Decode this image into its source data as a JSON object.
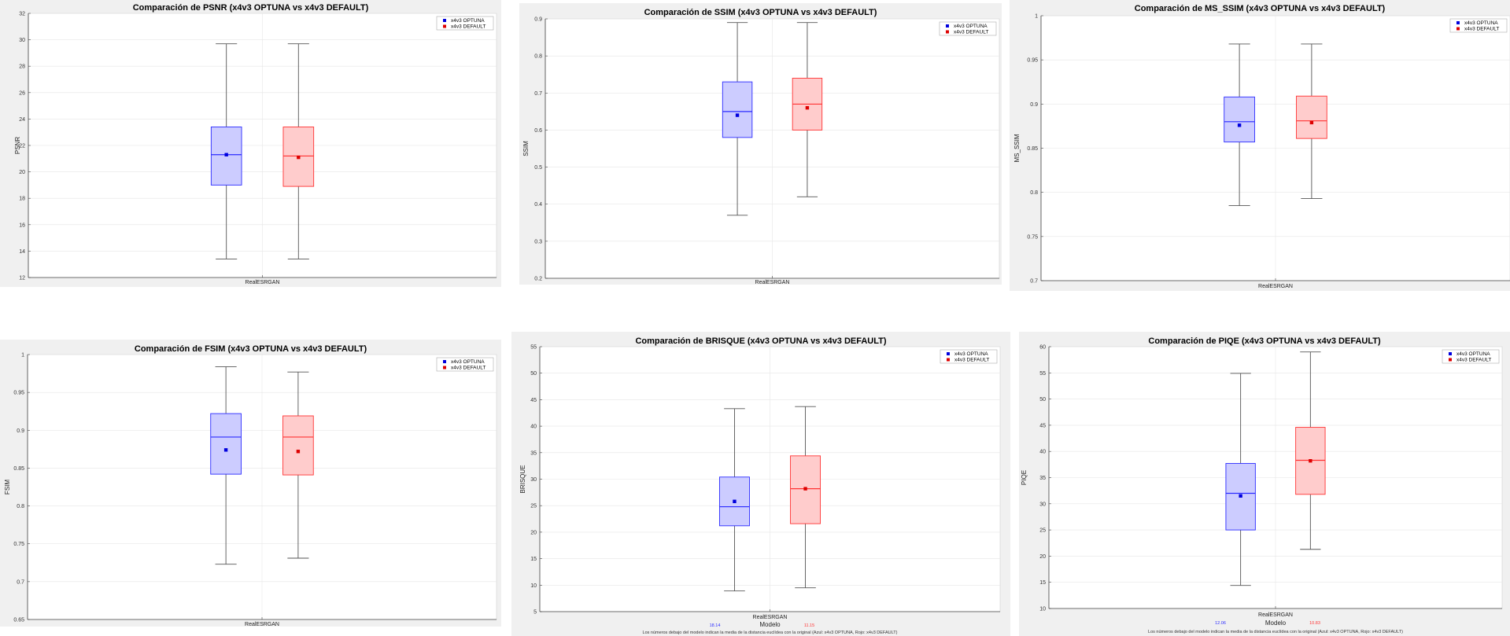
{
  "colors": {
    "optuna_edge": "#2b2bff",
    "optuna_fill": "#ccccff",
    "default_edge": "#ff3333",
    "default_fill": "#ffcccc",
    "optuna_mean": "#0000dd",
    "default_mean": "#dd0000",
    "whisker": "#555555"
  },
  "chart_data": [
    {
      "type": "box",
      "title": "Comparación de PSNR (x4v3 OPTUNA vs x4v3 DEFAULT)",
      "ylabel": "PSNR",
      "xlabel": "",
      "category": "RealESRGAN",
      "ylim": [
        12,
        32
      ],
      "yticks": [
        "12",
        "14",
        "16",
        "18",
        "20",
        "22",
        "24",
        "26",
        "28",
        "30",
        "32"
      ],
      "legend": [
        "x4v3 OPTUNA",
        "x4v3 DEFAULT"
      ],
      "legend_position": "top-right",
      "grid": true,
      "series": [
        {
          "name": "x4v3 OPTUNA",
          "min": 13.4,
          "q1": 19.0,
          "median": 21.3,
          "q3": 23.4,
          "max": 29.7,
          "mean": 21.3
        },
        {
          "name": "x4v3 DEFAULT",
          "min": 13.4,
          "q1": 18.9,
          "median": 21.2,
          "q3": 23.4,
          "max": 29.7,
          "mean": 21.1
        }
      ]
    },
    {
      "type": "box",
      "title": "Comparación de SSIM (x4v3 OPTUNA vs x4v3 DEFAULT)",
      "ylabel": "SSIM",
      "xlabel": "",
      "category": "RealESRGAN",
      "ylim": [
        0.2,
        0.9
      ],
      "yticks": [
        "0.2",
        "0.3",
        "0.4",
        "0.5",
        "0.6",
        "0.7",
        "0.8",
        "0.9"
      ],
      "legend": [
        "x4v3 OPTUNA",
        "x4v3 DEFAULT"
      ],
      "legend_position": "top-right",
      "grid": true,
      "series": [
        {
          "name": "x4v3 OPTUNA",
          "min": 0.37,
          "q1": 0.58,
          "median": 0.65,
          "q3": 0.73,
          "max": 0.89,
          "mean": 0.64
        },
        {
          "name": "x4v3 DEFAULT",
          "min": 0.42,
          "q1": 0.6,
          "median": 0.67,
          "q3": 0.74,
          "max": 0.89,
          "mean": 0.66
        }
      ]
    },
    {
      "type": "box",
      "title": "Comparación de MS_SSIM (x4v3 OPTUNA vs x4v3 DEFAULT)",
      "ylabel": "MS_SSIM",
      "xlabel": "",
      "category": "RealESRGAN",
      "ylim": [
        0.7,
        1
      ],
      "yticks": [
        "0.7",
        "0.75",
        "0.8",
        "0.85",
        "0.9",
        "0.95",
        "1"
      ],
      "legend": [
        "x4v3 OPTUNA",
        "x4v3 DEFAULT"
      ],
      "legend_position": "top-right",
      "grid": true,
      "series": [
        {
          "name": "x4v3 OPTUNA",
          "min": 0.785,
          "q1": 0.857,
          "median": 0.88,
          "q3": 0.908,
          "max": 0.968,
          "mean": 0.876
        },
        {
          "name": "x4v3 DEFAULT",
          "min": 0.793,
          "q1": 0.861,
          "median": 0.881,
          "q3": 0.909,
          "max": 0.968,
          "mean": 0.879
        }
      ]
    },
    {
      "type": "box",
      "title": "Comparación de FSIM (x4v3 OPTUNA vs x4v3 DEFAULT)",
      "ylabel": "FSIM",
      "xlabel": "",
      "category": "RealESRGAN",
      "ylim": [
        0.65,
        1
      ],
      "yticks": [
        "0.65",
        "0.7",
        "0.75",
        "0.8",
        "0.85",
        "0.9",
        "0.95",
        "1"
      ],
      "legend": [
        "x4v3 OPTUNA",
        "x4v3 DEFAULT"
      ],
      "legend_position": "top-right",
      "grid": true,
      "series": [
        {
          "name": "x4v3 OPTUNA",
          "min": 0.723,
          "q1": 0.842,
          "median": 0.891,
          "q3": 0.922,
          "max": 0.984,
          "mean": 0.874
        },
        {
          "name": "x4v3 DEFAULT",
          "min": 0.731,
          "q1": 0.841,
          "median": 0.891,
          "q3": 0.919,
          "max": 0.977,
          "mean": 0.872
        }
      ]
    },
    {
      "type": "box",
      "title": "Comparación de BRISQUE (x4v3 OPTUNA vs x4v3 DEFAULT)",
      "ylabel": "BRISQUE",
      "xlabel": "Modelo",
      "category": "RealESRGAN",
      "ylim": [
        5,
        55
      ],
      "yticks": [
        "5",
        "10",
        "15",
        "20",
        "25",
        "30",
        "35",
        "40",
        "45",
        "50",
        "55"
      ],
      "legend": [
        "x4v3 OPTUNA",
        "x4v3 DEFAULT"
      ],
      "legend_position": "top-right",
      "grid": true,
      "distances": [
        "18.14",
        "11.15"
      ],
      "note": "Los números debajo del modelo indican la media de la distancia euclídea con la original (Azul: x4v3 OPTUNA, Rojo: x4v3 DEFAULT)",
      "series": [
        {
          "name": "x4v3 OPTUNA",
          "min": 8.9,
          "q1": 21.2,
          "median": 24.8,
          "q3": 30.4,
          "max": 43.3,
          "mean": 25.8
        },
        {
          "name": "x4v3 DEFAULT",
          "min": 9.5,
          "q1": 21.6,
          "median": 28.2,
          "q3": 34.4,
          "max": 43.7,
          "mean": 28.2
        }
      ]
    },
    {
      "type": "box",
      "title": "Comparación de PIQE (x4v3 OPTUNA vs x4v3 DEFAULT)",
      "ylabel": "PIQE",
      "xlabel": "Modelo",
      "category": "RealESRGAN",
      "ylim": [
        10,
        60
      ],
      "yticks": [
        "10",
        "15",
        "20",
        "25",
        "30",
        "35",
        "40",
        "45",
        "50",
        "55",
        "60"
      ],
      "legend": [
        "x4v3 OPTUNA",
        "x4v3 DEFAULT"
      ],
      "legend_position": "top-right",
      "grid": true,
      "distances": [
        "12.06",
        "10.83"
      ],
      "note": "Los números debajo del modelo indican la media de la distancia euclídea con la original (Azul: x4v3 OPTUNA, Rojo: x4v3 DEFAULT)",
      "series": [
        {
          "name": "x4v3 OPTUNA",
          "min": 14.4,
          "q1": 25.0,
          "median": 32.0,
          "q3": 37.7,
          "max": 54.9,
          "mean": 31.5
        },
        {
          "name": "x4v3 DEFAULT",
          "min": 21.3,
          "q1": 31.8,
          "median": 38.3,
          "q3": 44.6,
          "max": 59.0,
          "mean": 38.2
        }
      ]
    }
  ]
}
